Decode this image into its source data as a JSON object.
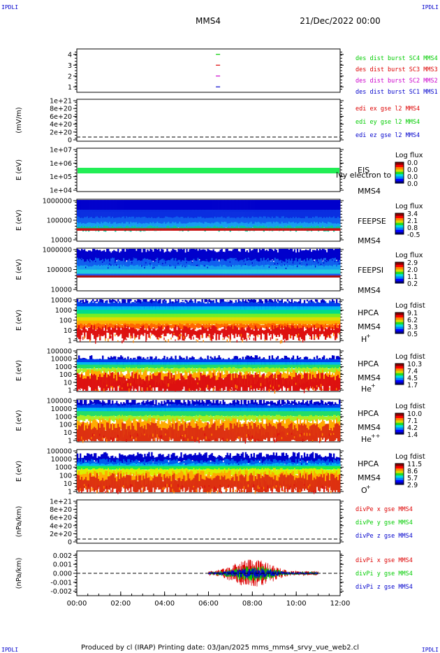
{
  "header": {
    "corner_left": "IPDLI",
    "corner_right": "IPDLI",
    "spacecraft": "MMS4",
    "datetime": "21/Dec/2022 00:00"
  },
  "footer": {
    "text": "Produced by cl (IRAP)   Printing date: 03/Jan/2025   mms_mms4_srvy_vue_web2.cl",
    "corner_left": "IPDLI",
    "corner_right": "IPDLI"
  },
  "colors": {
    "blue": "#0000cc",
    "magenta": "#cc00cc",
    "red": "#dd0000",
    "green": "#00cc00"
  },
  "chart_data": {
    "type": "line",
    "x_ticks": [
      "00:00",
      "02:00",
      "04:00",
      "06:00",
      "08:00",
      "10:00",
      "12:00"
    ],
    "xlim": [
      "00:00",
      "12:00"
    ],
    "panels": [
      {
        "id": "burst",
        "ylabel": "",
        "yticks": [
          "4",
          "3",
          "2",
          "1"
        ],
        "ylim": [
          0.5,
          4.5
        ],
        "series": [
          {
            "name": "des dist burst SC1 MMS1",
            "color": "#0000cc",
            "y": 1,
            "x": [
              "06:26"
            ]
          },
          {
            "name": "des dist burst SC2 MMS2",
            "color": "#cc00cc",
            "y": 2,
            "x": [
              "06:26"
            ]
          },
          {
            "name": "des dist burst SC3 MMS3",
            "color": "#dd0000",
            "y": 3,
            "x": [
              "06:26"
            ]
          },
          {
            "name": "des dist burst SC4 MMS4",
            "color": "#00cc00",
            "y": 4,
            "x": [
              "06:26"
            ]
          }
        ]
      },
      {
        "id": "edi",
        "ylabel": "(mV/m)",
        "yticks": [
          "1e+21",
          "8e+20",
          "6e+20",
          "4e+20",
          "2e+20",
          "0"
        ],
        "legend": [
          {
            "name": "edi ex gse l2 MMS4",
            "color": "#dd0000"
          },
          {
            "name": "edi ey gse l2 MMS4",
            "color": "#00cc00"
          },
          {
            "name": "edi ez gse l2 MMS4",
            "color": "#0000cc"
          }
        ]
      },
      {
        "id": "eis",
        "ylabel": "E (eV)",
        "yticks": [
          "1e+07",
          "1e+06",
          "1e+05",
          "1e+04"
        ],
        "labels": [
          "EIS",
          "MMS4"
        ],
        "overlay": "Ivy electron to",
        "colorbar": {
          "title": "Log flux",
          "ticks": [
            "0.0",
            "0.0",
            "0.0",
            "0.0"
          ]
        }
      },
      {
        "id": "feepse",
        "ylabel": "E (eV)",
        "yticks": [
          "1000000",
          "100000",
          "10000"
        ],
        "labels": [
          "FEEPSE",
          "MMS4"
        ],
        "colorbar": {
          "title": "Log flux",
          "ticks": [
            "3.4",
            "2.1",
            "0.8",
            "-0.5"
          ]
        }
      },
      {
        "id": "feepsi",
        "ylabel": "E (eV)",
        "yticks": [
          "1000000",
          "100000",
          "10000"
        ],
        "labels": [
          "FEEPSI",
          "MMS4"
        ],
        "colorbar": {
          "title": "Log flux",
          "ticks": [
            "2.9",
            "2.0",
            "1.1",
            "0.2"
          ]
        }
      },
      {
        "id": "hpca_h",
        "ylabel": "E (eV)",
        "yticks": [
          "10000",
          "1000",
          "100",
          "10",
          "1"
        ],
        "labels": [
          "HPCA",
          "MMS4"
        ],
        "species": "H",
        "charge": "+",
        "colorbar": {
          "title": "Log fdist",
          "ticks": [
            "9.1",
            "6.2",
            "3.3",
            "0.5"
          ]
        }
      },
      {
        "id": "hpca_he",
        "ylabel": "E (eV)",
        "yticks": [
          "100000",
          "10000",
          "1000",
          "100",
          "10",
          "1"
        ],
        "labels": [
          "HPCA",
          "MMS4"
        ],
        "species": "He",
        "charge": "+",
        "colorbar": {
          "title": "Log fdist",
          "ticks": [
            "10.3",
            "7.4",
            "4.5",
            "1.7"
          ]
        }
      },
      {
        "id": "hpca_hepp",
        "ylabel": "E (eV)",
        "yticks": [
          "100000",
          "10000",
          "1000",
          "100",
          "10",
          "1"
        ],
        "labels": [
          "HPCA",
          "MMS4"
        ],
        "species": "He",
        "charge": "++",
        "colorbar": {
          "title": "Log fdist",
          "ticks": [
            "10.0",
            "7.1",
            "4.2",
            "1.4"
          ]
        }
      },
      {
        "id": "hpca_o",
        "ylabel": "E (eV)",
        "yticks": [
          "100000",
          "10000",
          "1000",
          "100",
          "10",
          "1"
        ],
        "labels": [
          "HPCA",
          "MMS4"
        ],
        "species": "O",
        "charge": "+",
        "colorbar": {
          "title": "Log fdist",
          "ticks": [
            "11.5",
            "8.6",
            "5.7",
            "2.9"
          ]
        }
      },
      {
        "id": "divpe",
        "ylabel": "(nPa/km)",
        "yticks": [
          "1e+21",
          "8e+20",
          "6e+20",
          "4e+20",
          "2e+20",
          "0"
        ],
        "legend": [
          {
            "name": "divPe x gse MMS4",
            "color": "#dd0000"
          },
          {
            "name": "divPe y gse MMS4",
            "color": "#00cc00"
          },
          {
            "name": "divPe z gse MMS4",
            "color": "#0000cc"
          }
        ]
      },
      {
        "id": "divpi",
        "ylabel": "(nPa/km)",
        "yticks": [
          "0.002",
          "0.001",
          "0.000",
          "-0.001",
          "-0.002"
        ],
        "ylim": [
          -0.0025,
          0.0025
        ],
        "data_span": [
          "06:00",
          "11:00"
        ],
        "legend": [
          {
            "name": "divPi x gse MMS4",
            "color": "#dd0000"
          },
          {
            "name": "divPi y gse MMS4",
            "color": "#00cc00"
          },
          {
            "name": "divPi z gse MMS4",
            "color": "#0000cc"
          }
        ]
      }
    ]
  }
}
